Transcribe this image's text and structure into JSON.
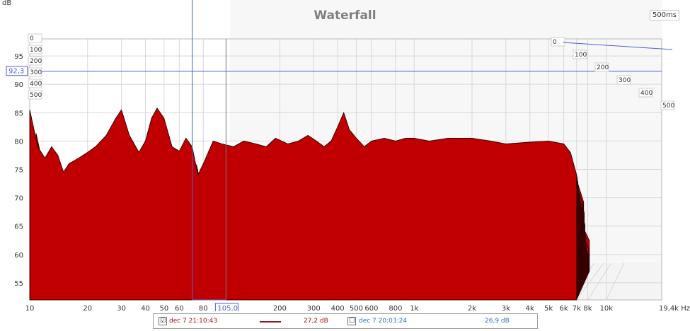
{
  "chart_data": {
    "type": "area",
    "title": "Waterfall",
    "y_unit": "dB",
    "x_unit": "Hz",
    "time_label": "500ms",
    "yticks": [
      95,
      90,
      85,
      80,
      75,
      70,
      65,
      60,
      55
    ],
    "xticks": [
      {
        "label": "10",
        "hz": 10
      },
      {
        "label": "20",
        "hz": 20
      },
      {
        "label": "30",
        "hz": 30
      },
      {
        "label": "40",
        "hz": 40
      },
      {
        "label": "50",
        "hz": 50
      },
      {
        "label": "60",
        "hz": 60
      },
      {
        "label": "80",
        "hz": 80
      },
      {
        "label": "200",
        "hz": 200
      },
      {
        "label": "300",
        "hz": 300
      },
      {
        "label": "400",
        "hz": 400
      },
      {
        "label": "500",
        "hz": 500
      },
      {
        "label": "600",
        "hz": 600
      },
      {
        "label": "800",
        "hz": 800
      },
      {
        "label": "1k",
        "hz": 1000
      },
      {
        "label": "2k",
        "hz": 2000
      },
      {
        "label": "3k",
        "hz": 3000
      },
      {
        "label": "4k",
        "hz": 4000
      },
      {
        "label": "5k",
        "hz": 5000
      },
      {
        "label": "6k",
        "hz": 6000
      },
      {
        "label": "7k",
        "hz": 7000
      },
      {
        "label": "8k",
        "hz": 8000
      },
      {
        "label": "10k",
        "hz": 10000
      },
      {
        "label": "19,4k Hz",
        "hz": 19400
      }
    ],
    "time_ticks_left": [
      "0",
      "100",
      "200",
      "300",
      "400",
      "500"
    ],
    "time_ticks_right": [
      "0",
      "100",
      "200",
      "300",
      "400",
      "500"
    ],
    "cursor": {
      "y_label": "92,3",
      "x_label": "105,0",
      "y_db": 92.3,
      "x_hz": 105
    },
    "marker_hz": 70,
    "slice_count": 21,
    "front_slice": {
      "time_ms": 0,
      "points": [
        [
          10,
          85.5
        ],
        [
          11,
          79
        ],
        [
          12,
          77
        ],
        [
          13,
          79
        ],
        [
          14,
          77.5
        ],
        [
          15,
          74.5
        ],
        [
          16,
          76
        ],
        [
          18,
          77
        ],
        [
          20,
          78
        ],
        [
          22,
          79
        ],
        [
          25,
          81
        ],
        [
          28,
          84
        ],
        [
          30,
          85.5
        ],
        [
          33,
          81
        ],
        [
          37,
          78
        ],
        [
          40,
          80
        ],
        [
          43,
          84
        ],
        [
          46,
          85.8
        ],
        [
          50,
          84
        ],
        [
          55,
          79
        ],
        [
          60,
          78.2
        ],
        [
          65,
          80.5
        ],
        [
          70,
          79
        ],
        [
          75,
          74
        ],
        [
          80,
          76
        ],
        [
          90,
          80
        ],
        [
          100,
          79.5
        ],
        [
          115,
          79
        ],
        [
          130,
          80
        ],
        [
          150,
          79.5
        ],
        [
          170,
          79
        ],
        [
          190,
          80.5
        ],
        [
          220,
          79.5
        ],
        [
          250,
          80
        ],
        [
          280,
          81
        ],
        [
          310,
          80
        ],
        [
          340,
          79
        ],
        [
          370,
          80
        ],
        [
          400,
          82.5
        ],
        [
          430,
          85
        ],
        [
          460,
          82
        ],
        [
          500,
          80.5
        ],
        [
          550,
          79
        ],
        [
          600,
          80
        ],
        [
          700,
          80.5
        ],
        [
          800,
          80
        ],
        [
          900,
          80.5
        ],
        [
          1000,
          80.5
        ],
        [
          1200,
          80
        ],
        [
          1500,
          80.5
        ],
        [
          2000,
          80.5
        ],
        [
          2500,
          80
        ],
        [
          3000,
          79.5
        ],
        [
          4000,
          79.8
        ],
        [
          5000,
          80
        ],
        [
          6000,
          79.5
        ],
        [
          6500,
          78
        ],
        [
          7000,
          74
        ]
      ]
    }
  },
  "legend": {
    "entry1_check": "☑",
    "entry1_label": "dec 7 21:10:43",
    "entry1_value": "27,2 dB",
    "entry2_check": "☐",
    "entry2_label": "dec 7 20:03:24",
    "entry2_value": "26,9 dB"
  },
  "colors": {
    "fill": "#c00000",
    "fill_dark": "#7a0000",
    "slice_line": "#2a0000",
    "grid": "#d8d8d8",
    "cursor": "#4f5fd8",
    "legend_value1": "#a31515",
    "legend_value2": "#2a73b8"
  }
}
